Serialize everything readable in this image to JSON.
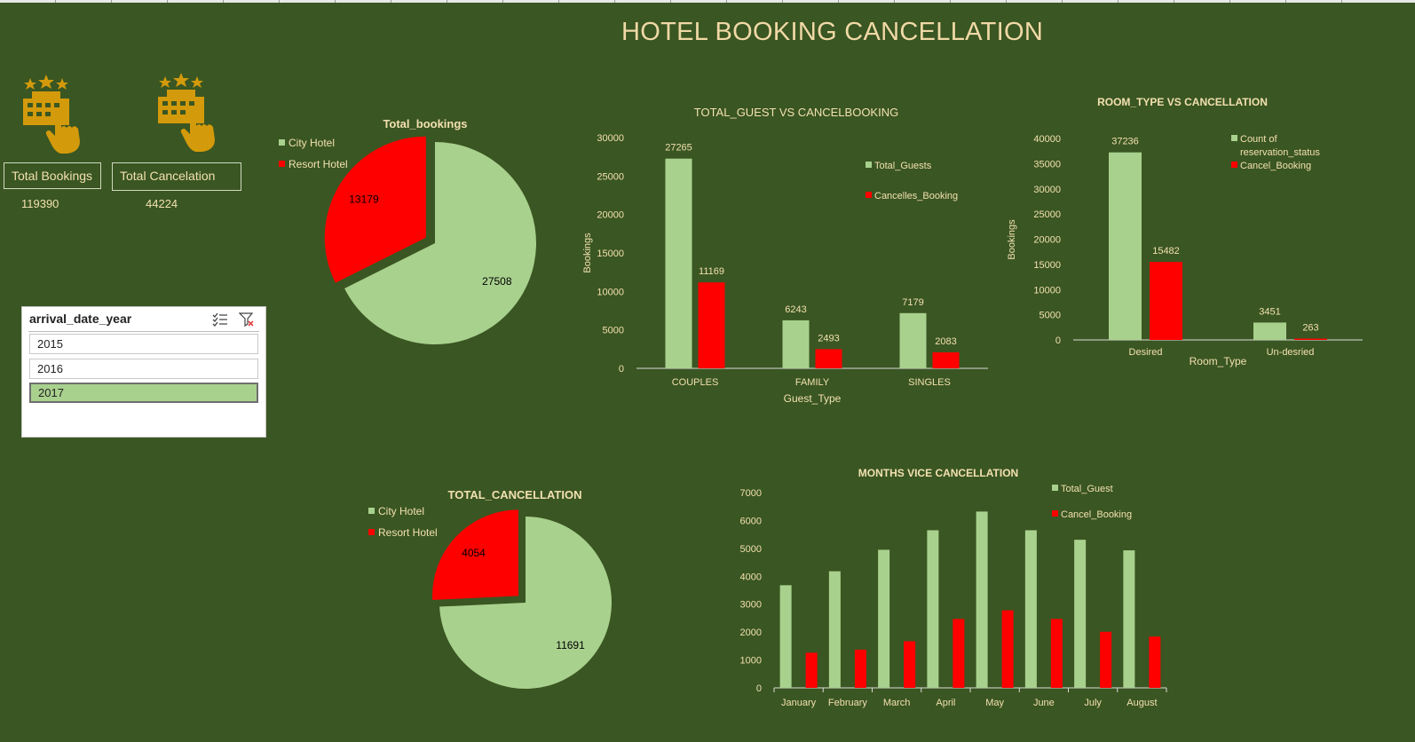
{
  "page_title": "HOTEL BOOKING CANCELLATION",
  "colors": {
    "background": "#3a5622",
    "green": "#a9d18e",
    "red": "#ff0000",
    "icon_gold": "#d39a0b",
    "text": "#f2e0b0"
  },
  "kpis": [
    {
      "icon": "hotel-booking-icon",
      "label": "Total Bookings",
      "value": "119390"
    },
    {
      "icon": "hotel-booking-icon",
      "label": "Total Cancelation",
      "value": "44224"
    }
  ],
  "slicer": {
    "title": "arrival_date_year",
    "items": [
      "2015",
      "2016",
      "2017"
    ],
    "selected": "2017",
    "multiselect_icon": "multi-select-icon",
    "clear_filter_icon": "clear-filter-icon"
  },
  "chart_data": [
    {
      "id": "total_bookings",
      "type": "pie",
      "title": "Total_bookings",
      "labels": [
        "City Hotel",
        "Resort Hotel"
      ],
      "values": [
        27508,
        13179
      ],
      "colors": [
        "#a9d18e",
        "#ff0000"
      ],
      "legend": "left"
    },
    {
      "id": "guest_vs_cancel",
      "type": "bar",
      "title": "TOTAL_GUEST VS CANCELBOOKING",
      "categories": [
        "COUPLES",
        "FAMILY",
        "SINGLES"
      ],
      "series": [
        {
          "name": "Total_Guests",
          "values": [
            27265,
            6243,
            7179
          ],
          "color": "#a9d18e"
        },
        {
          "name": "Cancelles_Booking",
          "values": [
            11169,
            2493,
            2083
          ],
          "color": "#ff0000"
        }
      ],
      "xlabel": "Guest_Type",
      "ylabel": "Bookings",
      "ylim": [
        0,
        30000
      ],
      "yticks": [
        0,
        5000,
        10000,
        15000,
        20000,
        25000,
        30000
      ],
      "data_labels": true,
      "legend": "right"
    },
    {
      "id": "room_type_vs_cancel",
      "type": "bar",
      "title": "ROOM_TYPE VS CANCELLATION",
      "categories": [
        "Desired",
        "Un-desried"
      ],
      "series": [
        {
          "name": "Count of reservation_status",
          "values": [
            37236,
            3451
          ],
          "color": "#a9d18e"
        },
        {
          "name": "Cancel_Booking",
          "values": [
            15482,
            263
          ],
          "color": "#ff0000"
        }
      ],
      "xlabel": "Room_Type",
      "ylabel": "Bookings",
      "ylim": [
        0,
        40000
      ],
      "yticks": [
        0,
        5000,
        10000,
        15000,
        20000,
        25000,
        30000,
        35000,
        40000
      ],
      "data_labels": true,
      "legend": "top-right"
    },
    {
      "id": "total_cancellation",
      "type": "pie",
      "title": "TOTAL_CANCELLATION",
      "labels": [
        "City Hotel",
        "Resort Hotel"
      ],
      "values": [
        11691,
        4054
      ],
      "colors": [
        "#a9d18e",
        "#ff0000"
      ],
      "legend": "left"
    },
    {
      "id": "months_cancel",
      "type": "bar",
      "title": "MONTHS VICE CANCELLATION",
      "categories": [
        "January",
        "February",
        "March",
        "April",
        "May",
        "June",
        "July",
        "August"
      ],
      "series": [
        {
          "name": "Total_Guest",
          "values": [
            3680,
            4180,
            4950,
            5650,
            6320,
            5650,
            5310,
            4930
          ],
          "color": "#a9d18e"
        },
        {
          "name": "Cancel_Booking",
          "values": [
            1260,
            1370,
            1670,
            2470,
            2780,
            2470,
            2010,
            1840
          ],
          "color": "#ff0000"
        }
      ],
      "xlabel": "",
      "ylabel": "",
      "ylim": [
        0,
        7000
      ],
      "yticks": [
        0,
        1000,
        2000,
        3000,
        4000,
        5000,
        6000,
        7000
      ],
      "data_labels": false,
      "legend": "top-right"
    }
  ]
}
